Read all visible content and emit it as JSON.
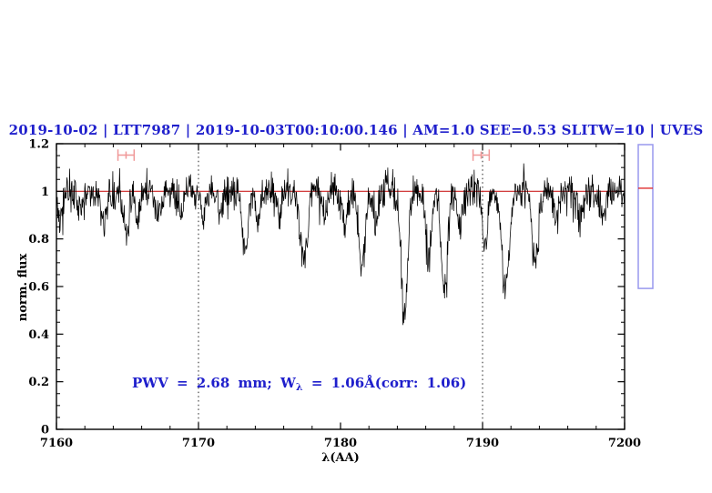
{
  "chart_data": {
    "type": "line",
    "title": "2019-10-02 | LTT7987 | 2019-10-03T00:10:00.146 | AM=1.0 SEE=0.53 SLITW=10 | UVES",
    "xlabel": "λ(AA)",
    "ylabel": "norm. flux",
    "xlim": [
      7160,
      7200
    ],
    "ylim": [
      0,
      1.2
    ],
    "x_tick_values": [
      7160,
      7170,
      7180,
      7190,
      7200
    ],
    "x_tick_labels": [
      "7160",
      "7170",
      "7180",
      "7190",
      "7200"
    ],
    "x_minor_step": 2,
    "y_tick_values": [
      0,
      0.2,
      0.4,
      0.6,
      0.8,
      1,
      1.2
    ],
    "y_tick_labels": [
      "0",
      "0.2",
      "0.4",
      "0.6",
      "0.8",
      "1",
      "1.2"
    ],
    "y_minor_step": 0.05,
    "grid": "off",
    "legend": "none",
    "annotation": {
      "pre": "PWV = 2.68 mm; W",
      "sub": "λ",
      "post": " = 1.06Å(corr: 1.06)"
    },
    "continuum_line_flux": 1.0,
    "dotted_vlines_aa": [
      7170,
      7190
    ],
    "interval_markers": [
      {
        "center_aa": 7164.9,
        "half_width_aa": 0.57,
        "flux": 1.152,
        "cap_half_height_flux": 0.024
      },
      {
        "center_aa": 7189.9,
        "half_width_aa": 0.57,
        "flux": 1.152,
        "cap_half_height_flux": 0.024
      }
    ],
    "side_indicator": {
      "top_flux": 1.2,
      "bottom_flux": 0.592,
      "line_flux": 1.013
    },
    "series": [
      {
        "name": "observed normalized spectrum",
        "style": "noisy black trace around continuum 1.0 with telluric absorption lines",
        "continuum_flux": 1.0,
        "noise_sigma": 0.04,
        "noise_seed": 20191002,
        "n_points": 1250,
        "absorption_lines_aa_depth_sigma": [
          [
            7160.3,
            0.1,
            0.2
          ],
          [
            7161.7,
            0.09,
            0.18
          ],
          [
            7163.3,
            0.12,
            0.2
          ],
          [
            7164.9,
            0.17,
            0.22
          ],
          [
            7165.7,
            0.14,
            0.15
          ],
          [
            7167.2,
            0.09,
            0.18
          ],
          [
            7168.8,
            0.08,
            0.18
          ],
          [
            7170.3,
            0.1,
            0.18
          ],
          [
            7171.6,
            0.08,
            0.18
          ],
          [
            7173.3,
            0.24,
            0.22
          ],
          [
            7174.2,
            0.13,
            0.18
          ],
          [
            7175.7,
            0.11,
            0.18
          ],
          [
            7177.4,
            0.28,
            0.25
          ],
          [
            7178.9,
            0.1,
            0.18
          ],
          [
            7180.3,
            0.12,
            0.18
          ],
          [
            7181.5,
            0.33,
            0.22
          ],
          [
            7182.5,
            0.14,
            0.18
          ],
          [
            7184.5,
            0.5,
            0.24
          ],
          [
            7186.2,
            0.3,
            0.2
          ],
          [
            7187.3,
            0.44,
            0.22
          ],
          [
            7188.4,
            0.16,
            0.18
          ],
          [
            7190.2,
            0.24,
            0.2
          ],
          [
            7191.6,
            0.42,
            0.26
          ],
          [
            7193.7,
            0.3,
            0.22
          ],
          [
            7195.2,
            0.13,
            0.18
          ],
          [
            7196.9,
            0.11,
            0.18
          ],
          [
            7198.5,
            0.13,
            0.18
          ]
        ]
      }
    ]
  },
  "colors": {
    "accent_text": "#1f1fcc",
    "continuum_line": "#cc2222",
    "interval_marker": "#f09898",
    "side_indicator_box": "#9898ee",
    "side_indicator_line": "#dd2222",
    "spectrum": "#000000",
    "frame": "#000000",
    "dotted_line": "#222222"
  }
}
